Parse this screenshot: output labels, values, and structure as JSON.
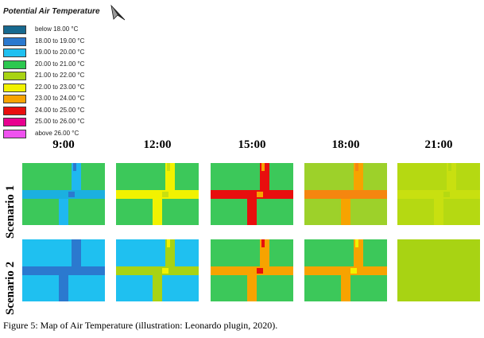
{
  "legend": {
    "title": "Potential Air Temperature",
    "items": [
      {
        "label": "below 18.00 °C",
        "color": "#17698f"
      },
      {
        "label": "18.00 to 19.00 °C",
        "color": "#2b79cf"
      },
      {
        "label": "19.00 to 20.00 °C",
        "color": "#1fc0f0"
      },
      {
        "label": "20.00 to 21.00 °C",
        "color": "#2cc84f"
      },
      {
        "label": "21.00 to 22.00 °C",
        "color": "#a8d313"
      },
      {
        "label": "22.00 to 23.00 °C",
        "color": "#f2f200"
      },
      {
        "label": "23.00 to 24.00 °C",
        "color": "#f7a300"
      },
      {
        "label": "24.00 to 25.00 °C",
        "color": "#e80e0e"
      },
      {
        "label": "25.00 to 26.00 °C",
        "color": "#e8008f"
      },
      {
        "label": "above 26.00 °C",
        "color": "#ef52ef"
      }
    ]
  },
  "times": [
    "9:00",
    "12:00",
    "15:00",
    "18:00",
    "21:00"
  ],
  "scenarios": [
    {
      "label": "Scenario 1",
      "maps": [
        {
          "bg": "#3cc85a",
          "road_h": "#1bb0e0",
          "road_v": "#1fb8f0",
          "hot": "#2b79cf"
        },
        {
          "bg": "#3cc85a",
          "road_h": "#f2f200",
          "road_v": "#f2f200",
          "hot": "#c8e010"
        },
        {
          "bg": "#3cc85a",
          "road_h": "#e80e0e",
          "road_v": "#e80e0e",
          "hot": "#f7a300"
        },
        {
          "bg": "#9dd12a",
          "road_h": "#f5860f",
          "road_v": "#f7a300",
          "hot": "#f5860f"
        },
        {
          "bg": "#b5d912",
          "road_h": "#c8e010",
          "road_v": "#c8e010",
          "hot": "#b5d912"
        }
      ]
    },
    {
      "label": "Scenario 2",
      "maps": [
        {
          "bg": "#1fc0f0",
          "road_h": "#2b79cf",
          "road_v": "#2b79cf",
          "hot": "#2b79cf"
        },
        {
          "bg": "#1fc0f0",
          "road_h": "#a8d313",
          "road_v": "#a8d313",
          "hot": "#f2f200"
        },
        {
          "bg": "#3cc85a",
          "road_h": "#f7a300",
          "road_v": "#f7a300",
          "hot": "#e80e0e"
        },
        {
          "bg": "#3cc85a",
          "road_h": "#f7a300",
          "road_v": "#f7a300",
          "hot": "#f2f200"
        },
        {
          "bg": "#a8d313",
          "road_h": "#a8d313",
          "road_v": "#a8d313",
          "hot": "#a8d313"
        }
      ]
    }
  ],
  "caption": "Figure 5: Map of Air Temperature (illustration: Leonardo plugin, 2020)."
}
